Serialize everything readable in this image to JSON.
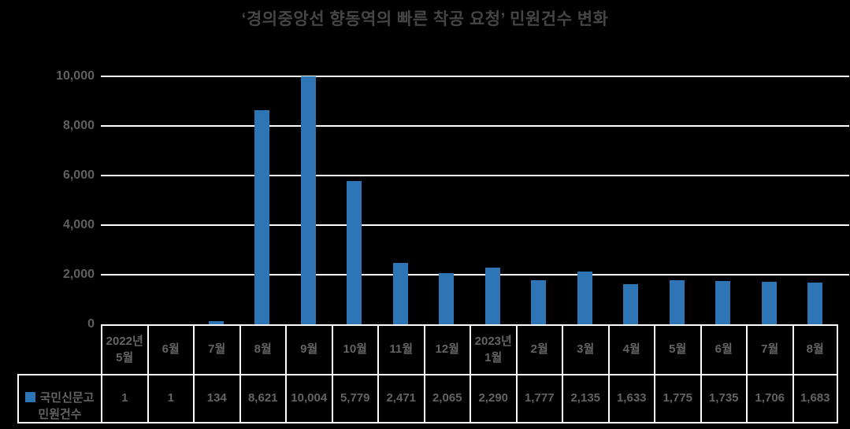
{
  "title": "‘경의중앙선 향동역의 빠른 착공 요청’ 민원건수 변화",
  "colors": {
    "background": "#000000",
    "bar": "#2e75b6",
    "gridline": "#ffffff",
    "table_border": "#ffffff",
    "title_text": "#454545",
    "label_text": "#5f5f5f"
  },
  "legend": {
    "label": "국민신문고 민원건수",
    "marker": "blue-square"
  },
  "y_axis": {
    "tick_labels": [
      "10,000",
      "8,000",
      "6,000",
      "4,000",
      "2,000",
      "0"
    ],
    "tick_values": [
      10000,
      8000,
      6000,
      4000,
      2000,
      0
    ]
  },
  "chart_data": {
    "type": "bar",
    "title": "‘경의중앙선 향동역의 빠른 착공 요청’ 민원건수 변화",
    "categories": [
      "2022년\n5월",
      "6월",
      "7월",
      "8월",
      "9월",
      "10월",
      "11월",
      "12월",
      "2023년\n1월",
      "2월",
      "3월",
      "4월",
      "5월",
      "6월",
      "7월",
      "8월"
    ],
    "series": [
      {
        "name": "국민신문고 민원건수",
        "values": [
          1,
          1,
          134,
          8621,
          10004,
          5779,
          2471,
          2065,
          2290,
          1777,
          2135,
          1633,
          1775,
          1735,
          1706,
          1683
        ]
      }
    ],
    "value_labels": [
      "1",
      "1",
      "134",
      "8,621",
      "10,004",
      "5,779",
      "2,471",
      "2,065",
      "2,290",
      "1,777",
      "2,135",
      "1,633",
      "1,775",
      "1,735",
      "1,706",
      "1,683"
    ],
    "xlabel": "",
    "ylabel": "",
    "ylim": [
      0,
      10000
    ],
    "grid": true,
    "legend_position": "table-row-header"
  }
}
